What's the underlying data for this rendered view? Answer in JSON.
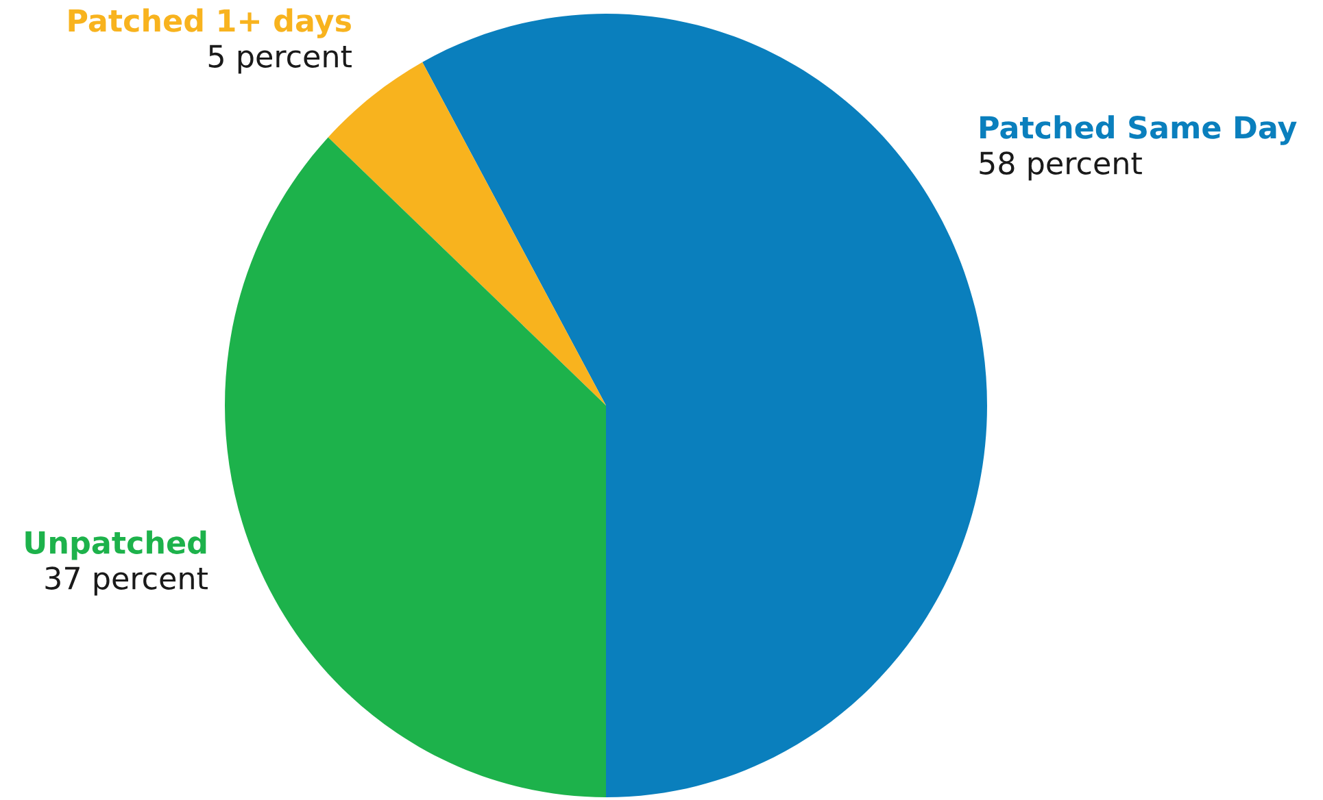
{
  "chart_data": {
    "type": "pie",
    "categories": [
      "Patched Same Day",
      "Patched 1+ days",
      "Unpatched"
    ],
    "values": [
      58,
      5,
      37
    ],
    "colors": [
      "#0a7fbd",
      "#f8b31e",
      "#1db24b"
    ],
    "value_labels": [
      "58 percent",
      "5 percent",
      "37 percent"
    ]
  }
}
